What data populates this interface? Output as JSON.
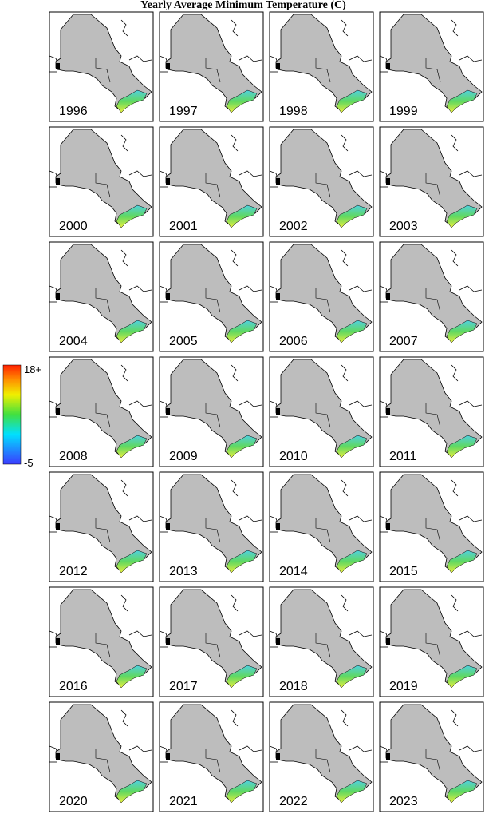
{
  "title": "Yearly Average Minimum Temperature (C)",
  "years": [
    "1996",
    "1997",
    "1998",
    "1999",
    "2000",
    "2001",
    "2002",
    "2003",
    "2004",
    "2005",
    "2006",
    "2007",
    "2008",
    "2009",
    "2010",
    "2011",
    "2012",
    "2013",
    "2014",
    "2015",
    "2016",
    "2017",
    "2018",
    "2019",
    "2020",
    "2021",
    "2022",
    "2023"
  ],
  "colorbar": {
    "max_label": "18+",
    "min_label": "-5"
  }
}
